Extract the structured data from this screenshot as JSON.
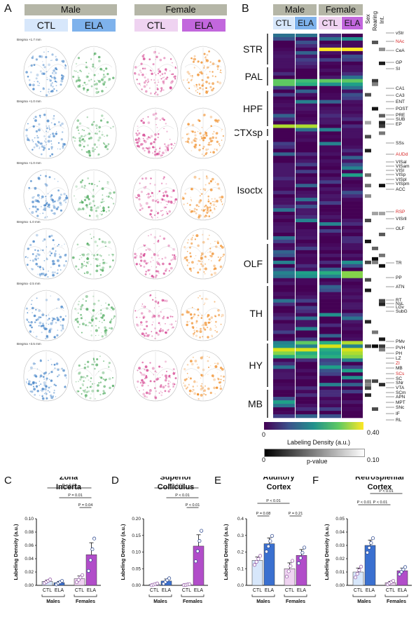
{
  "panelA": {
    "letter": "A",
    "male": "Male",
    "female": "Female",
    "groups": [
      "CTL",
      "ELA",
      "CTL",
      "ELA"
    ],
    "group_colors": [
      "#d7e7fb",
      "#7eb2ec",
      "#efd3f1",
      "#c267dd"
    ],
    "rows": [
      "Bregma +1.7 mm",
      "Bregma +1.0 mm",
      "Bregma +1.0 mm",
      "Bregma -1.0 mm",
      "Bregma -2.5 mm",
      "Bregma +3.5 mm"
    ],
    "col_colors": [
      "#3d7fc6",
      "#4aa85a",
      "#d4418f",
      "#ef8a22"
    ]
  },
  "panelB": {
    "letter": "B",
    "male": "Male",
    "female": "Female",
    "groups": [
      "CTL",
      "ELA",
      "CTL",
      "ELA"
    ],
    "side_headers": [
      "Sex",
      "Rearing",
      "Int."
    ],
    "regions": [
      "STR",
      "PAL",
      "HPF",
      "CTXsp",
      "Isoctx",
      "OLF",
      "TH",
      "HY",
      "MB"
    ],
    "subregions": [
      "vStr",
      "NAc",
      "CeA",
      "GP",
      "SI",
      "CA1",
      "CA3",
      "ENT",
      "POST",
      "PRE",
      "SUB",
      "EP",
      "SSs",
      "AUDd",
      "VISal",
      "VISam",
      "VISl",
      "VISp",
      "VISpl",
      "VISpm",
      "ACC",
      "RSP",
      "VISrll",
      "OLF",
      "TR",
      "PP",
      "ATN",
      "RT",
      "NsL",
      "LGv",
      "SubG",
      "PMv",
      "PVH",
      "PH",
      "LZ",
      "ZI",
      "MB",
      "SCs",
      "SC",
      "SNr",
      "VTA",
      "SCm",
      "APN",
      "MPT",
      "SNc",
      "IF",
      "RL"
    ],
    "red_subregions": [
      "NAc",
      "AUDd",
      "RSP",
      "ZI",
      "SCs"
    ],
    "colorbar": {
      "min": "0",
      "max": "0.40",
      "label": "Labeling Density (a.u.)"
    },
    "pbar": {
      "min": "0",
      "max": "0.10",
      "label": "p-value"
    }
  },
  "ylabel": "Labeling Density (a.u.)",
  "males": "Males",
  "females": "Females",
  "chart_data": [
    {
      "type": "bar",
      "panel": "C",
      "title": "Zona Incerta",
      "categories": [
        "CTL",
        "ELA",
        "CTL",
        "ELA"
      ],
      "values": [
        0.006,
        0.004,
        0.01,
        0.046
      ],
      "errors": [
        0.002,
        0.002,
        0.004,
        0.018
      ],
      "ylim": [
        0,
        0.1
      ],
      "yticks": [
        "0.00",
        "0.02",
        "0.04",
        "0.06",
        "0.08",
        "0.10"
      ],
      "ylabel": "Labeling Density (a.u.)",
      "pvalues": [
        "P = 0.02",
        "P = 0.01",
        "P = 0.04"
      ],
      "colors": [
        "#d7e7fb",
        "#3a70d0",
        "#efd3f1",
        "#b14dc9"
      ]
    },
    {
      "type": "bar",
      "panel": "D",
      "title": "Superior Colliculus",
      "categories": [
        "CTL",
        "ELA",
        "CTL",
        "ELA"
      ],
      "values": [
        0.003,
        0.013,
        0.002,
        0.118
      ],
      "errors": [
        0.002,
        0.006,
        0.001,
        0.034
      ],
      "ylim": [
        0,
        0.2
      ],
      "yticks": [
        "0.00",
        "0.05",
        "0.10",
        "0.15",
        "0.20"
      ],
      "ylabel": "Labeling Density (a.u.)",
      "pvalues": [
        "P < 0.01",
        "P < 0.01",
        "P < 0.01"
      ],
      "colors": [
        "#d7e7fb",
        "#3a70d0",
        "#efd3f1",
        "#b14dc9"
      ]
    },
    {
      "type": "bar",
      "panel": "E",
      "title": "Auditory Cortex",
      "categories": [
        "CTL",
        "ELA",
        "CTL",
        "ELA"
      ],
      "values": [
        0.15,
        0.25,
        0.1,
        0.18
      ],
      "errors": [
        0.02,
        0.035,
        0.035,
        0.035
      ],
      "ylim": [
        0,
        0.4
      ],
      "yticks": [
        "0.0",
        "0.1",
        "0.2",
        "0.3",
        "0.4"
      ],
      "ylabel": "Labeling Density (a.u.)",
      "pvalues": [
        "P < 0.01",
        "P = 0.08",
        "P = 0.21"
      ],
      "colors": [
        "#d7e7fb",
        "#3a70d0",
        "#efd3f1",
        "#b14dc9"
      ]
    },
    {
      "type": "bar",
      "panel": "F",
      "title": "Retrosplenial Cortex",
      "categories": [
        "CTL",
        "ELA",
        "CTL",
        "ELA"
      ],
      "values": [
        0.01,
        0.03,
        0.002,
        0.011
      ],
      "errors": [
        0.003,
        0.004,
        0.001,
        0.002
      ],
      "ylim": [
        0,
        0.05
      ],
      "yticks": [
        "0.00",
        "0.01",
        "0.02",
        "0.03",
        "0.04",
        "0.05"
      ],
      "ylabel": "Labeling Density (a.u.)",
      "pvalues": [
        "P < 0.01",
        "P < 0.01",
        "P < 0.01"
      ],
      "colors": [
        "#d7e7fb",
        "#3a70d0",
        "#efd3f1",
        "#b14dc9"
      ]
    }
  ]
}
